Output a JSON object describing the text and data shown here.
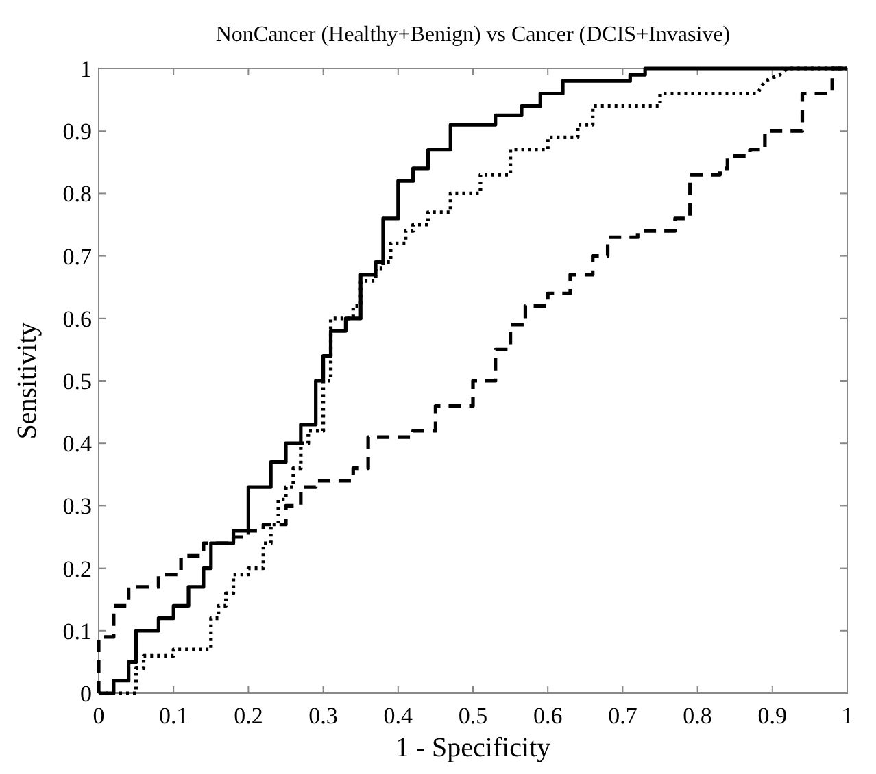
{
  "chart_data": {
    "type": "line",
    "title": "NonCancer (Healthy+Benign) vs Cancer (DCIS+Invasive)",
    "xlabel": "1 - Specificity",
    "ylabel": "Sensitivity",
    "xlim": [
      0,
      1
    ],
    "ylim": [
      0,
      1
    ],
    "xticks": [
      0,
      0.1,
      0.2,
      0.3,
      0.4,
      0.5,
      0.6,
      0.7,
      0.8,
      0.9,
      1
    ],
    "yticks": [
      0,
      0.1,
      0.2,
      0.3,
      0.4,
      0.5,
      0.6,
      0.7,
      0.8,
      0.9,
      1
    ],
    "grid": false,
    "marker": "none",
    "series": [
      {
        "color": "#000000",
        "line_style": "solid",
        "x": [
          0,
          0.02,
          0.02,
          0.04,
          0.04,
          0.05,
          0.05,
          0.08,
          0.08,
          0.1,
          0.1,
          0.12,
          0.12,
          0.14,
          0.14,
          0.15,
          0.15,
          0.18,
          0.18,
          0.2,
          0.2,
          0.23,
          0.23,
          0.25,
          0.25,
          0.27,
          0.27,
          0.29,
          0.29,
          0.3,
          0.3,
          0.31,
          0.31,
          0.33,
          0.33,
          0.35,
          0.35,
          0.37,
          0.37,
          0.38,
          0.38,
          0.4,
          0.4,
          0.42,
          0.42,
          0.44,
          0.44,
          0.47,
          0.47,
          0.53,
          0.53,
          0.565,
          0.565,
          0.59,
          0.59,
          0.62,
          0.62,
          0.71,
          0.71,
          0.73,
          0.73,
          1
        ],
        "values": [
          0,
          0,
          0.02,
          0.02,
          0.05,
          0.05,
          0.1,
          0.1,
          0.12,
          0.12,
          0.14,
          0.14,
          0.17,
          0.17,
          0.2,
          0.2,
          0.24,
          0.24,
          0.26,
          0.26,
          0.33,
          0.33,
          0.37,
          0.37,
          0.4,
          0.4,
          0.43,
          0.43,
          0.5,
          0.5,
          0.54,
          0.54,
          0.58,
          0.58,
          0.6,
          0.6,
          0.67,
          0.67,
          0.69,
          0.69,
          0.76,
          0.76,
          0.82,
          0.82,
          0.84,
          0.84,
          0.87,
          0.87,
          0.91,
          0.91,
          0.925,
          0.925,
          0.94,
          0.94,
          0.96,
          0.96,
          0.98,
          0.98,
          0.99,
          0.99,
          1,
          1
        ]
      },
      {
        "color": "#000000",
        "line_style": "dotted",
        "x": [
          0,
          0.05,
          0.05,
          0.06,
          0.06,
          0.1,
          0.1,
          0.15,
          0.15,
          0.16,
          0.16,
          0.17,
          0.17,
          0.18,
          0.18,
          0.2,
          0.2,
          0.22,
          0.22,
          0.23,
          0.23,
          0.24,
          0.24,
          0.25,
          0.25,
          0.26,
          0.26,
          0.27,
          0.27,
          0.28,
          0.28,
          0.3,
          0.3,
          0.31,
          0.31,
          0.34,
          0.34,
          0.35,
          0.35,
          0.37,
          0.37,
          0.38,
          0.38,
          0.39,
          0.39,
          0.41,
          0.41,
          0.42,
          0.42,
          0.44,
          0.44,
          0.47,
          0.47,
          0.51,
          0.51,
          0.55,
          0.55,
          0.6,
          0.6,
          0.64,
          0.64,
          0.66,
          0.66,
          0.75,
          0.75,
          0.88,
          0.89,
          0.91,
          0.92,
          1
        ],
        "values": [
          0,
          0,
          0.04,
          0.04,
          0.06,
          0.06,
          0.07,
          0.07,
          0.12,
          0.12,
          0.14,
          0.14,
          0.16,
          0.16,
          0.19,
          0.19,
          0.2,
          0.2,
          0.24,
          0.24,
          0.27,
          0.27,
          0.31,
          0.31,
          0.33,
          0.33,
          0.36,
          0.36,
          0.4,
          0.4,
          0.42,
          0.42,
          0.5,
          0.5,
          0.6,
          0.6,
          0.62,
          0.62,
          0.66,
          0.66,
          0.68,
          0.68,
          0.69,
          0.69,
          0.72,
          0.72,
          0.74,
          0.74,
          0.75,
          0.75,
          0.77,
          0.77,
          0.8,
          0.8,
          0.83,
          0.83,
          0.87,
          0.87,
          0.89,
          0.89,
          0.91,
          0.91,
          0.94,
          0.94,
          0.96,
          0.96,
          0.98,
          0.99,
          1,
          1
        ]
      },
      {
        "color": "#000000",
        "line_style": "dashed",
        "x": [
          0,
          0,
          0.02,
          0.02,
          0.04,
          0.04,
          0.08,
          0.08,
          0.11,
          0.11,
          0.14,
          0.14,
          0.18,
          0.18,
          0.2,
          0.2,
          0.22,
          0.22,
          0.25,
          0.25,
          0.27,
          0.27,
          0.29,
          0.29,
          0.34,
          0.34,
          0.36,
          0.36,
          0.42,
          0.42,
          0.45,
          0.45,
          0.5,
          0.5,
          0.53,
          0.53,
          0.55,
          0.55,
          0.57,
          0.57,
          0.6,
          0.6,
          0.63,
          0.63,
          0.66,
          0.66,
          0.68,
          0.68,
          0.72,
          0.72,
          0.77,
          0.77,
          0.79,
          0.79,
          0.83,
          0.83,
          0.84,
          0.84,
          0.87,
          0.87,
          0.89,
          0.89,
          0.94,
          0.94,
          0.98,
          0.98,
          1
        ],
        "values": [
          0,
          0.09,
          0.09,
          0.14,
          0.14,
          0.17,
          0.17,
          0.19,
          0.19,
          0.22,
          0.22,
          0.24,
          0.24,
          0.25,
          0.25,
          0.26,
          0.26,
          0.27,
          0.27,
          0.3,
          0.3,
          0.33,
          0.33,
          0.34,
          0.34,
          0.36,
          0.36,
          0.41,
          0.41,
          0.42,
          0.42,
          0.46,
          0.46,
          0.5,
          0.5,
          0.55,
          0.55,
          0.59,
          0.59,
          0.62,
          0.62,
          0.64,
          0.64,
          0.67,
          0.67,
          0.7,
          0.7,
          0.73,
          0.73,
          0.74,
          0.74,
          0.76,
          0.76,
          0.83,
          0.83,
          0.84,
          0.84,
          0.86,
          0.86,
          0.87,
          0.87,
          0.9,
          0.9,
          0.96,
          0.96,
          1,
          1
        ]
      }
    ]
  }
}
